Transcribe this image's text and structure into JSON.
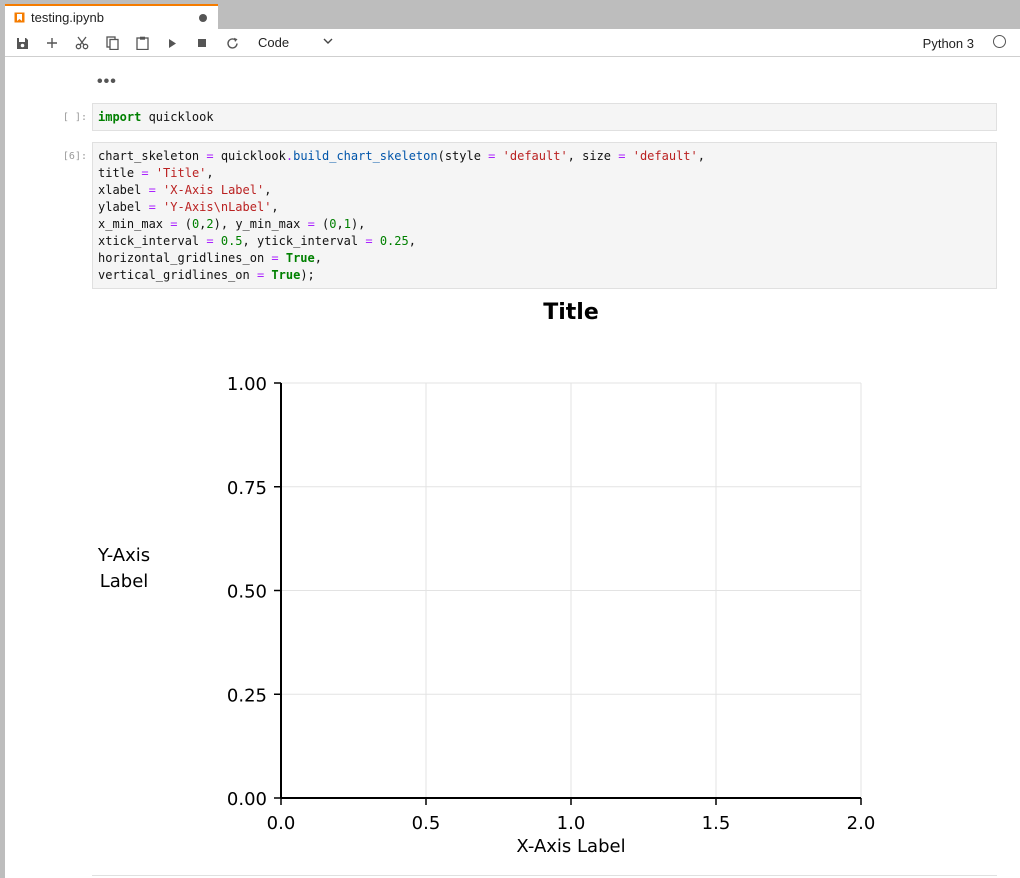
{
  "tab": {
    "title": "testing.ipynb"
  },
  "toolbar": {
    "cell_type": "Code",
    "kernel": "Python 3",
    "icons": [
      "save-icon",
      "add-cell-icon",
      "cut-icon",
      "copy-icon",
      "paste-icon",
      "run-icon",
      "stop-icon",
      "restart-icon"
    ]
  },
  "cells": {
    "collapsed_indicator": "•••",
    "cell1": {
      "prompt": "[ ]:"
    },
    "cell2": {
      "prompt": "[6]:"
    }
  },
  "chart_data": {
    "type": "line",
    "title": "Title",
    "xlabel": "X-Axis Label",
    "ylabel": "Y-Axis\nLabel",
    "xlim": [
      0,
      2
    ],
    "ylim": [
      0,
      1
    ],
    "xticks": [
      "0.0",
      "0.5",
      "1.0",
      "1.5",
      "2.0"
    ],
    "yticks": [
      "0.00",
      "0.25",
      "0.50",
      "0.75",
      "1.00"
    ],
    "grid": true,
    "series": []
  }
}
